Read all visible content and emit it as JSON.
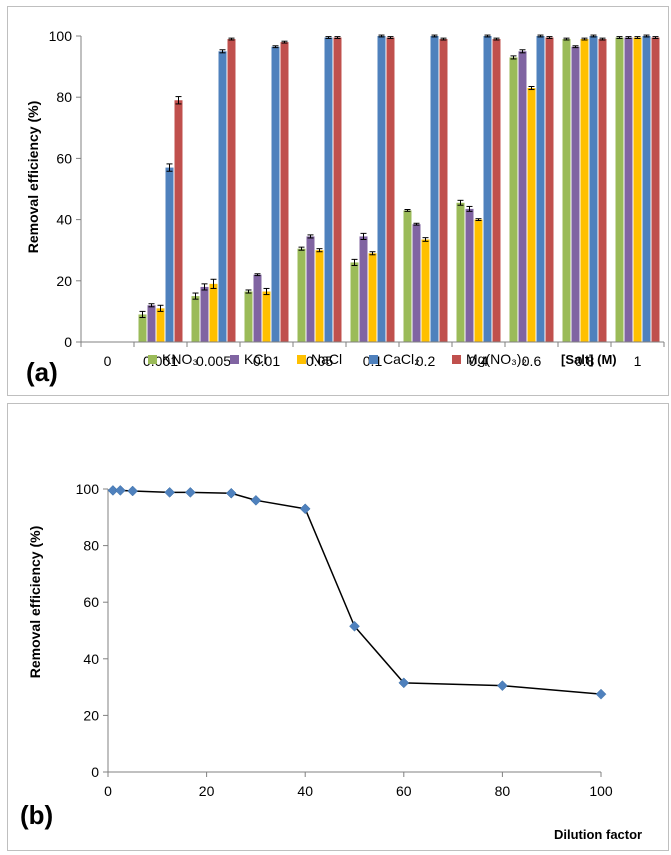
{
  "chart_data": [
    {
      "type": "bar",
      "panel_label": "(a)",
      "ylabel": "Removal efficiency (%)",
      "xlabel": "[Salt] (M)",
      "ylim": [
        0,
        100
      ],
      "yticks": [
        0,
        20,
        40,
        60,
        80,
        100
      ],
      "grid": "none",
      "legend_position": "bottom",
      "categories": [
        "0",
        "0.001",
        "0.005",
        "0.01",
        "0.05",
        "0.1",
        "0.2",
        "0.4",
        "0.6",
        "0.8",
        "1"
      ],
      "series": [
        {
          "name": "KNO₃",
          "color": "#9bbb59",
          "values": [
            0,
            9,
            15,
            16.5,
            30.5,
            26,
            43,
            45.5,
            93,
            99,
            99.5
          ],
          "errors": [
            0,
            1,
            1,
            0.5,
            0.5,
            1,
            0.3,
            0.8,
            0.5,
            0.3,
            0.3
          ]
        },
        {
          "name": "KCl",
          "color": "#8064a2",
          "values": [
            0,
            12,
            18,
            22,
            34.5,
            34.5,
            38.5,
            43.5,
            95,
            96.5,
            99.5
          ],
          "errors": [
            0,
            0.5,
            1,
            0.3,
            0.5,
            1,
            0.3,
            0.8,
            0.5,
            0.3,
            0.3
          ]
        },
        {
          "name": "NaCl",
          "color": "#ffc000",
          "values": [
            0,
            11,
            19,
            16.5,
            30,
            29,
            33.5,
            40,
            83,
            99,
            99.5
          ],
          "errors": [
            0,
            1,
            1.5,
            1,
            0.5,
            0.5,
            0.6,
            0.3,
            0.5,
            0.3,
            0.3
          ]
        },
        {
          "name": "CaCl₂",
          "color": "#4f81bd",
          "values": [
            0,
            57,
            95,
            96.5,
            99.5,
            100,
            100,
            100,
            100,
            100,
            100
          ],
          "errors": [
            0,
            1.2,
            0.5,
            0.3,
            0.3,
            0.3,
            0.3,
            0.3,
            0.3,
            0.3,
            0.3
          ]
        },
        {
          "name": "Mg(NO₃)₂",
          "color": "#c0504d",
          "values": [
            0,
            79,
            99,
            98,
            99.5,
            99.5,
            99,
            99,
            99.5,
            99,
            99.5
          ],
          "errors": [
            0,
            1.2,
            0.3,
            0.3,
            0.3,
            0.3,
            0.3,
            0.3,
            0.3,
            0.3,
            0.3
          ]
        }
      ]
    },
    {
      "type": "line",
      "panel_label": "(b)",
      "ylabel": "Removal efficiency (%)",
      "xlabel": "Dilution factor",
      "xlim": [
        0,
        100
      ],
      "ylim": [
        0,
        100
      ],
      "xticks": [
        0,
        20,
        40,
        60,
        80,
        100
      ],
      "yticks": [
        0,
        20,
        40,
        60,
        80,
        100
      ],
      "grid": "none",
      "series": [
        {
          "color": "#4f81bd",
          "x": [
            1,
            2.5,
            5,
            12.5,
            16.7,
            25,
            30,
            40,
            50,
            60,
            80,
            100
          ],
          "y": [
            99.5,
            99.5,
            99.3,
            98.8,
            98.8,
            98.5,
            96,
            93,
            51.5,
            31.5,
            30.5,
            27.5
          ]
        }
      ]
    }
  ]
}
